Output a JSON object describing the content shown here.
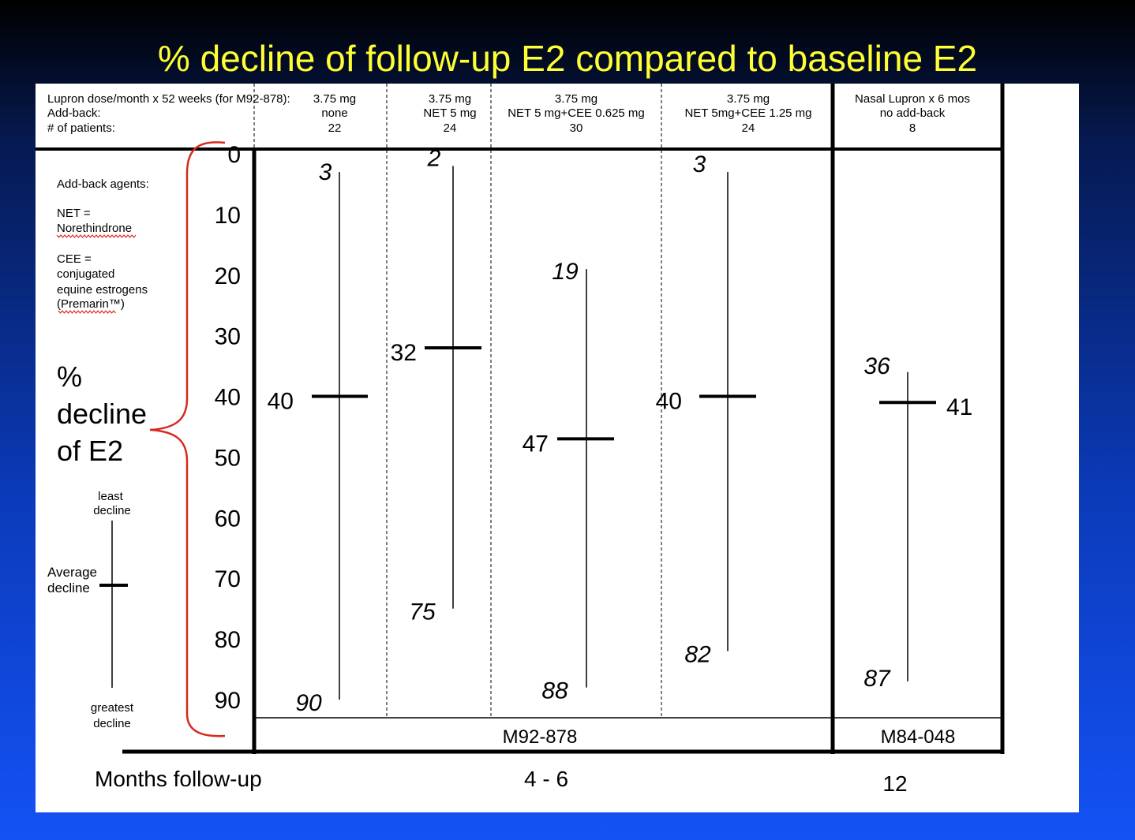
{
  "title": "% decline of follow-up E2 compared to baseline E2",
  "header": {
    "row_labels": [
      "Lupron dose/month x 52 weeks (for M92-878):",
      "Add-back:",
      "# of patients:"
    ]
  },
  "legend_notes": {
    "heading": "Add-back agents:",
    "net_line1": "NET =",
    "net_line2": "Norethindrone",
    "cee_line1": "CEE =",
    "cee_line2": "conjugated",
    "cee_line3": "equine estrogens",
    "cee_line4": "(Premarin™)"
  },
  "axis_title": [
    "%",
    "decline",
    "of E2"
  ],
  "key": {
    "least": [
      "least",
      "decline"
    ],
    "average": [
      "Average",
      "decline"
    ],
    "greatest": [
      "greatest",
      "decline"
    ]
  },
  "footer": {
    "study_a": "M92-878",
    "study_b": "M84-048",
    "months_label": "Months follow-up",
    "months_a": "4 - 6",
    "months_b": "12"
  },
  "colors": {
    "title": "#ffff33",
    "brace": "#d62a1e",
    "panel": "#ffffff"
  },
  "chart_data": {
    "type": "range",
    "title": "% decline of follow-up E2 compared to baseline E2",
    "y_axis": {
      "min": 0,
      "max": 90,
      "inverted": true,
      "ticks": [
        0,
        10,
        20,
        30,
        40,
        50,
        60,
        70,
        80,
        90
      ]
    },
    "groups": [
      {
        "dose": "3.75 mg",
        "addback": "none",
        "patients": "22",
        "min": 3,
        "mean": 40,
        "max": 90,
        "study": "M92-878",
        "months": "4 - 6"
      },
      {
        "dose": "3.75 mg",
        "addback": "NET 5 mg",
        "patients": "24",
        "min": 2,
        "mean": 32,
        "max": 75,
        "study": "M92-878",
        "months": "4 - 6"
      },
      {
        "dose": "3.75 mg",
        "addback": "NET 5 mg+CEE 0.625 mg",
        "patients": "30",
        "min": 19,
        "mean": 47,
        "max": 88,
        "study": "M92-878",
        "months": "4 - 6"
      },
      {
        "dose": "3.75 mg",
        "addback": "NET 5mg+CEE 1.25 mg",
        "patients": "24",
        "min": 3,
        "mean": 40,
        "max": 82,
        "study": "M92-878",
        "months": "4 - 6"
      },
      {
        "dose": "Nasal Lupron x 6 mos",
        "addback": "no add-back",
        "patients": "8",
        "min": 36,
        "mean": 41,
        "max": 87,
        "study": "M84-048",
        "months": "12"
      }
    ]
  }
}
